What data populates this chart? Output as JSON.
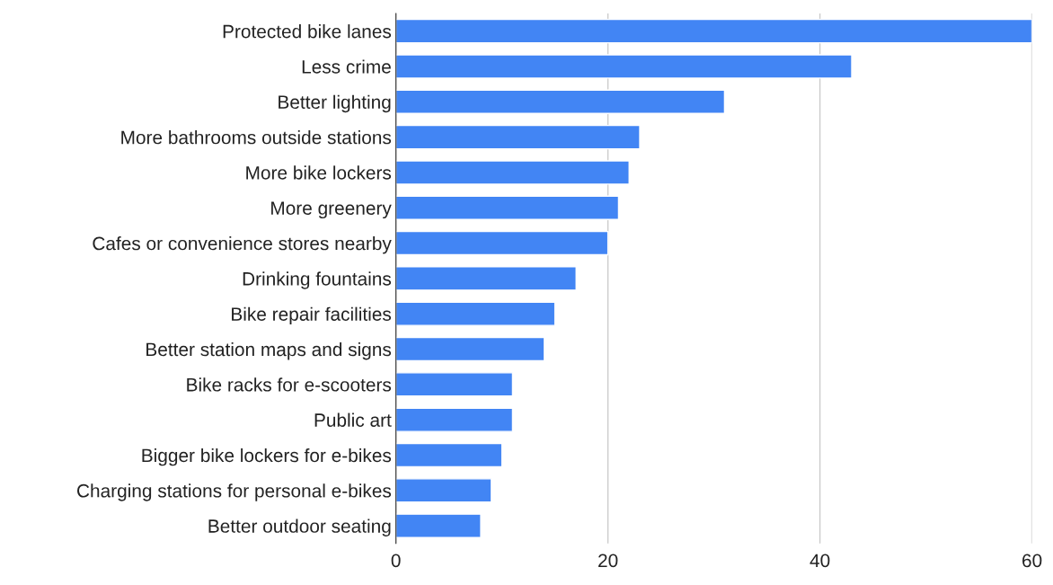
{
  "chart_data": {
    "type": "bar",
    "orientation": "horizontal",
    "categories": [
      "Protected bike lanes",
      "Less crime",
      "Better lighting",
      "More bathrooms outside stations",
      "More bike lockers",
      "More greenery",
      "Cafes or convenience stores nearby",
      "Drinking fountains",
      "Bike repair facilities",
      "Better station maps and signs",
      "Bike racks for e-scooters",
      "Public art",
      "Bigger bike lockers for e-bikes",
      "Charging stations for personal e-bikes",
      "Better outdoor seating"
    ],
    "values": [
      60,
      43,
      31,
      23,
      22,
      21,
      20,
      17,
      15,
      14,
      11,
      11,
      10,
      9,
      8
    ],
    "color": "#4285f4",
    "xlim": [
      0,
      60
    ],
    "xticks": [
      0,
      20,
      40,
      60
    ],
    "grid": "x",
    "legend": false
  }
}
